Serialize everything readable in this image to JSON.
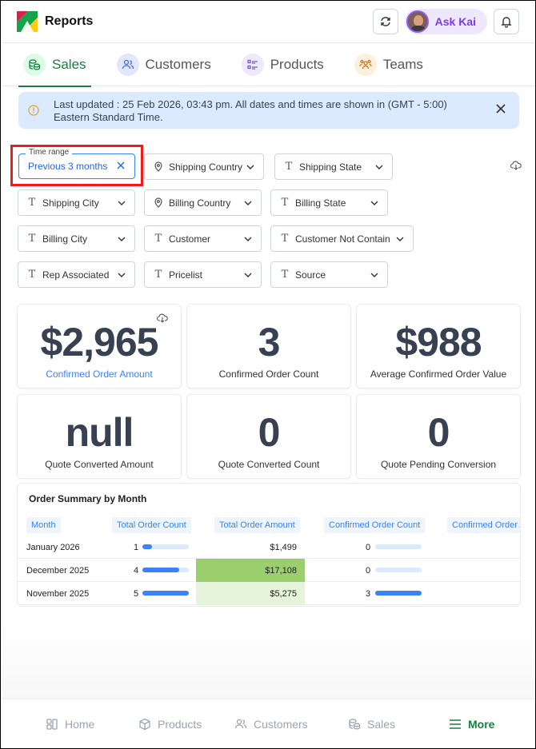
{
  "header": {
    "title": "Reports",
    "ask_label": "Ask Kai"
  },
  "tabs": [
    {
      "label": "Sales",
      "icon": "coins-icon",
      "active": true
    },
    {
      "label": "Customers",
      "icon": "users-icon",
      "active": false
    },
    {
      "label": "Products",
      "icon": "list-icon",
      "active": false
    },
    {
      "label": "Teams",
      "icon": "team-icon",
      "active": false
    }
  ],
  "banner": {
    "text": "Last updated : 25 Feb 2026, 03:43 pm. All dates and times are shown in (GMT - 5:00) Eastern Standard Time."
  },
  "time_range": {
    "label": "Time range",
    "value": "Previous 3 months"
  },
  "filters": [
    {
      "label": "Shipping Country",
      "icon": "pin"
    },
    {
      "label": "Shipping State",
      "icon": "text"
    },
    {
      "label": "Shipping City",
      "icon": "text"
    },
    {
      "label": "Billing Country",
      "icon": "pin"
    },
    {
      "label": "Billing State",
      "icon": "text"
    },
    {
      "label": "Billing City",
      "icon": "text"
    },
    {
      "label": "Customer",
      "icon": "text"
    },
    {
      "label": "Customer Not Contain",
      "icon": "text"
    },
    {
      "label": "Rep Associated",
      "icon": "text"
    },
    {
      "label": "Pricelist",
      "icon": "text"
    },
    {
      "label": "Source",
      "icon": "text"
    }
  ],
  "metrics": [
    {
      "value": "$2,965",
      "label": "Confirmed Order Amount"
    },
    {
      "value": "3",
      "label": "Confirmed Order Count"
    },
    {
      "value": "$988",
      "label": "Average Confirmed Order Value"
    },
    {
      "value": "null",
      "label": "Quote Converted Amount"
    },
    {
      "value": "0",
      "label": "Quote Converted Count"
    },
    {
      "value": "0",
      "label": "Quote Pending Conversion"
    }
  ],
  "order_summary": {
    "title": "Order Summary by Month",
    "columns": [
      "Month",
      "Total Order Count",
      "Total Order Amount",
      "Confirmed Order Count",
      "Confirmed Order A"
    ],
    "rows": [
      {
        "month": "January 2026",
        "count": "1",
        "count_frac": 0.2,
        "amount": "$1,499",
        "confirmed": "0",
        "confirmed_frac": 0
      },
      {
        "month": "December 2025",
        "count": "4",
        "count_frac": 0.8,
        "amount": "$17,108",
        "confirmed": "0",
        "confirmed_frac": 0
      },
      {
        "month": "November 2025",
        "count": "5",
        "count_frac": 1.0,
        "amount": "$5,275",
        "confirmed": "3",
        "confirmed_frac": 1.0
      }
    ]
  },
  "bottom_nav": [
    {
      "label": "Home",
      "icon": "home-icon"
    },
    {
      "label": "Products",
      "icon": "box-icon"
    },
    {
      "label": "Customers",
      "icon": "users-icon"
    },
    {
      "label": "Sales",
      "icon": "coins-icon"
    },
    {
      "label": "More",
      "icon": "menu-icon",
      "active": true
    }
  ],
  "colors": {
    "accent": "#15803d",
    "link": "#3b82f6",
    "banner": "#dbeafe",
    "highlight": "#9bcf6e",
    "highlight_light": "#e6f4dc"
  }
}
